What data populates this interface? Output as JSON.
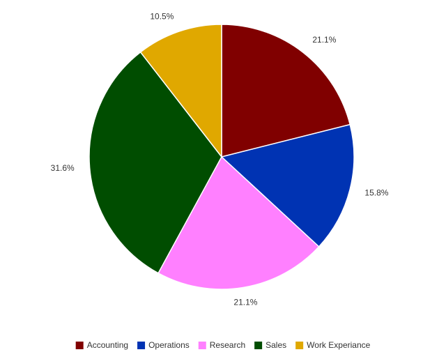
{
  "chart_data": {
    "type": "pie",
    "categories": [
      "Accounting",
      "Operations",
      "Research",
      "Sales",
      "Work Experiance"
    ],
    "values": [
      21.1,
      15.8,
      21.1,
      31.6,
      10.5
    ],
    "value_labels": [
      "21.1%",
      "15.8%",
      "21.1%",
      "31.6%",
      "10.5%"
    ],
    "colors": [
      "#800000",
      "#0033b3",
      "#ff80ff",
      "#004d00",
      "#e0a800"
    ],
    "legend": "bottom"
  }
}
